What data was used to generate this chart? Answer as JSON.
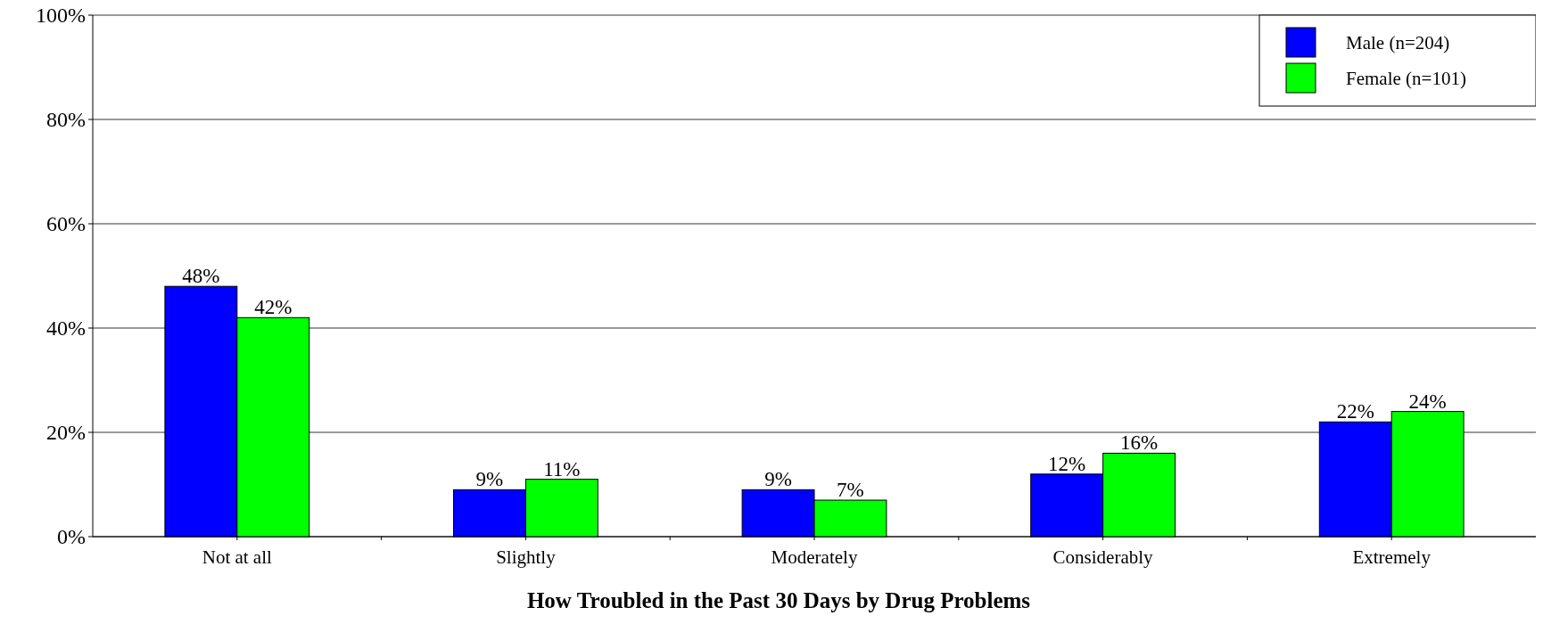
{
  "chart_data": {
    "type": "bar",
    "xlabel": "How Troubled in the Past 30 Days by Drug Problems",
    "categories": [
      "Not at all",
      "Slightly",
      "Moderately",
      "Considerably",
      "Extremely"
    ],
    "series": [
      {
        "name": "Male (n=204)",
        "color": "#0000ff",
        "values": [
          48,
          9,
          9,
          12,
          22
        ]
      },
      {
        "name": "Female (n=101)",
        "color": "#00ff00",
        "values": [
          42,
          11,
          7,
          16,
          24
        ]
      }
    ],
    "value_labels": [
      [
        "48%",
        "9%",
        "9%",
        "12%",
        "22%"
      ],
      [
        "42%",
        "11%",
        "7%",
        "16%",
        "24%"
      ]
    ],
    "ylim": [
      0,
      100
    ],
    "yticks": [
      {
        "value": 0,
        "label": "0%"
      },
      {
        "value": 20,
        "label": "20%"
      },
      {
        "value": 40,
        "label": "40%"
      },
      {
        "value": 60,
        "label": "60%"
      },
      {
        "value": 80,
        "label": "80%"
      },
      {
        "value": 100,
        "label": "100%"
      }
    ],
    "grid": "y",
    "legend": "top right"
  }
}
